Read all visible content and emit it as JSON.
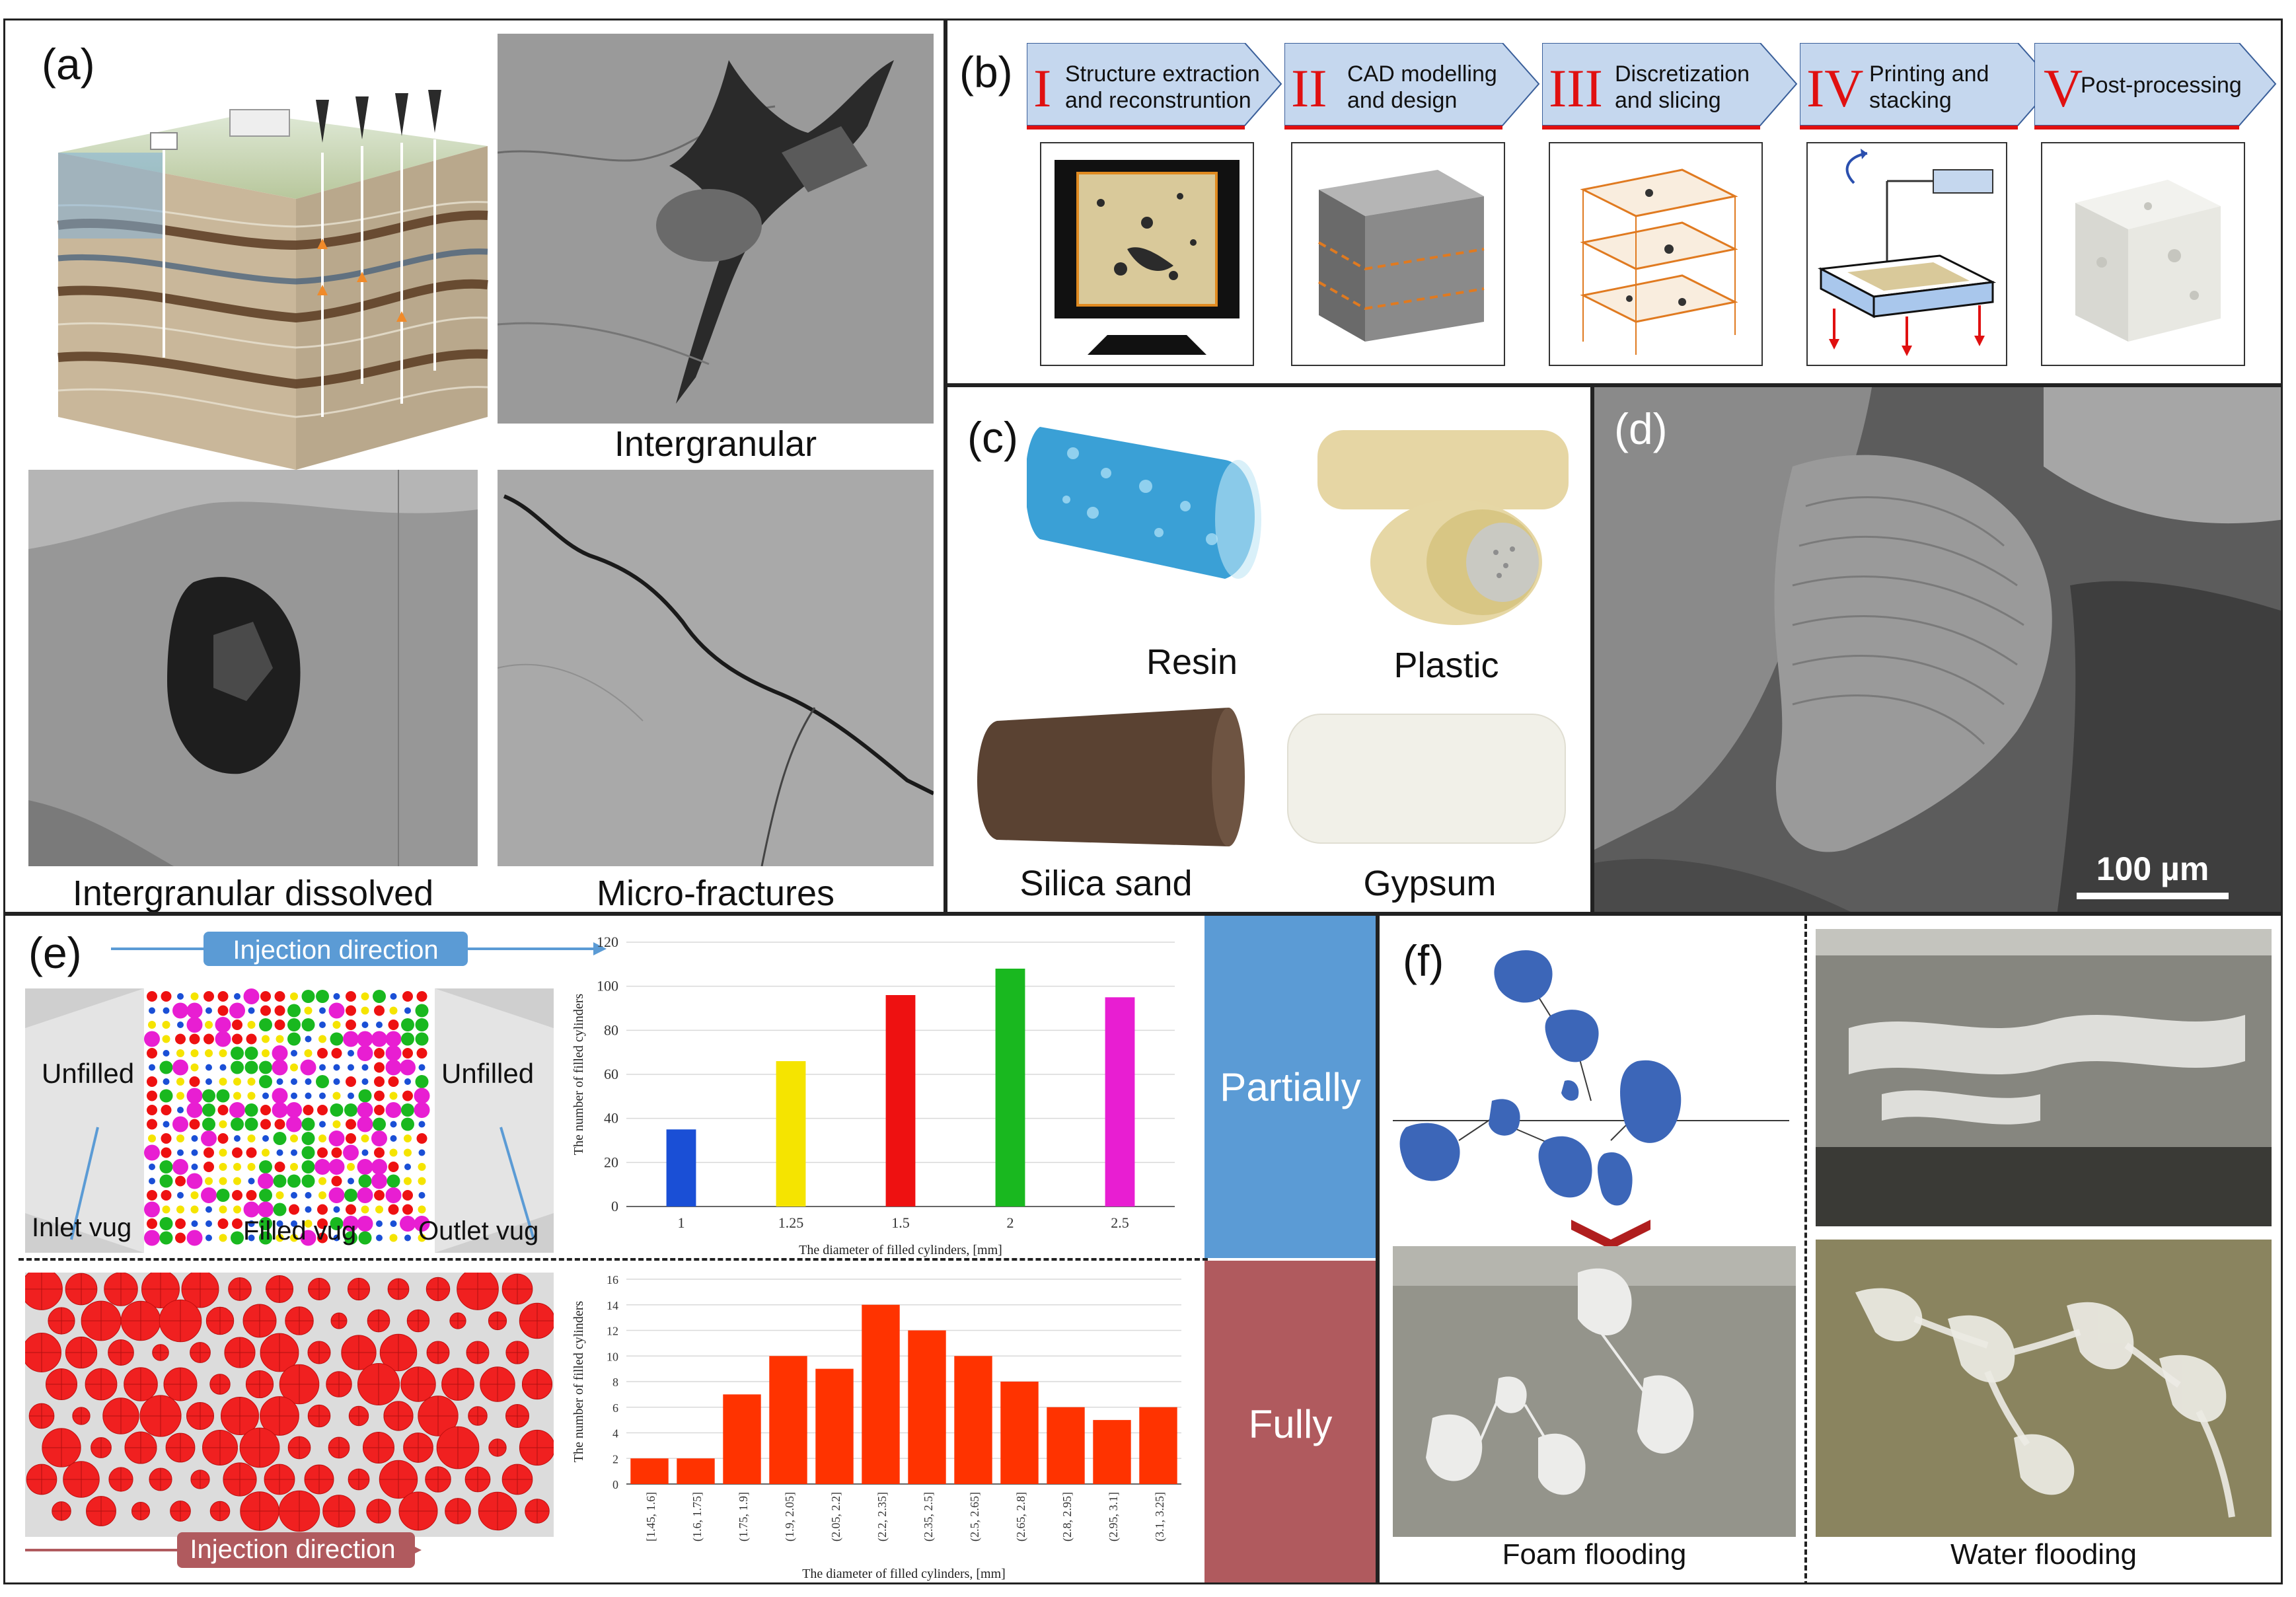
{
  "panel_a": {
    "label": "(a)",
    "captions": {
      "intergranular": "Intergranular",
      "dissolved": "Intergranular dissolved",
      "microfractures": "Micro-fractures"
    }
  },
  "panel_b": {
    "label": "(b)",
    "steps": [
      {
        "numeral": "I",
        "text1": "Structure extraction",
        "text2": "and reconstruntion"
      },
      {
        "numeral": "II",
        "text1": "CAD modelling",
        "text2": "and design"
      },
      {
        "numeral": "III",
        "text1": "Discretization",
        "text2": "and slicing"
      },
      {
        "numeral": "IV",
        "text1": "Printing and",
        "text2": "stacking"
      },
      {
        "numeral": "V",
        "text1": "Post-processing",
        "text2": ""
      }
    ]
  },
  "panel_c": {
    "label": "(c)",
    "materials": {
      "resin": "Resin",
      "plastic": "Plastic",
      "silica": "Silica sand",
      "gypsum": "Gypsum"
    }
  },
  "panel_d": {
    "label": "(d)",
    "scale": "100 µm"
  },
  "panel_e": {
    "label": "(e)",
    "injection_top": "Injection direction",
    "injection_bottom": "Injection direction",
    "unfilled_left": "Unfilled",
    "unfilled_right": "Unfilled",
    "inlet": "Inlet vug",
    "filled": "Filled vug",
    "outlet": "Outlet vug",
    "partially": "Partially",
    "fully": "Fully"
  },
  "panel_f": {
    "label": "(f)",
    "foam": "Foam flooding",
    "water": "Water flooding"
  },
  "colors": {
    "blue_bar": "#1a4fd6",
    "yellow_bar": "#f5e400",
    "red_bar": "#ee1111",
    "green_bar": "#19b81f",
    "magenta_bar": "#e81ed2",
    "orange_bar": "#ff3300",
    "partially_bg": "#5b9bd5",
    "fully_bg": "#b05a5e",
    "step_arrow": "#c5d7ee"
  },
  "chart_data": [
    {
      "type": "bar",
      "categories": [
        "1",
        "1.25",
        "1.5",
        "2",
        "2.5"
      ],
      "values": [
        35,
        66,
        96,
        108,
        95
      ],
      "title": "",
      "xlabel": "The diameter of filled cylinders, [mm]",
      "ylabel": "The number of filled cylinders",
      "ylim": [
        0,
        120
      ],
      "yticks": [
        "0",
        "20",
        "40",
        "60",
        "80",
        "100",
        "120"
      ],
      "colors": [
        "#1a4fd6",
        "#f5e400",
        "#ee1111",
        "#19b81f",
        "#e81ed2"
      ],
      "grid": true
    },
    {
      "type": "bar",
      "categories": [
        "[1.45, 1.6]",
        "(1.6, 1.75]",
        "(1.75, 1.9]",
        "(1.9, 2.05]",
        "(2.05, 2.2]",
        "(2.2, 2.35]",
        "(2.35, 2.5]",
        "(2.5, 2.65]",
        "(2.65, 2.8]",
        "(2.8, 2.95]",
        "(2.95, 3.1]",
        "(3.1, 3.25]"
      ],
      "values": [
        2,
        2,
        7,
        10,
        9,
        14,
        12,
        10,
        8,
        6,
        5,
        6
      ],
      "title": "",
      "xlabel": "The diameter of filled cylinders, [mm]",
      "ylabel": "The number of filled cylinders",
      "ylim": [
        0,
        16
      ],
      "yticks": [
        "0",
        "2",
        "4",
        "6",
        "8",
        "10",
        "12",
        "14",
        "16"
      ],
      "color": "#ff3300",
      "grid": true
    }
  ]
}
